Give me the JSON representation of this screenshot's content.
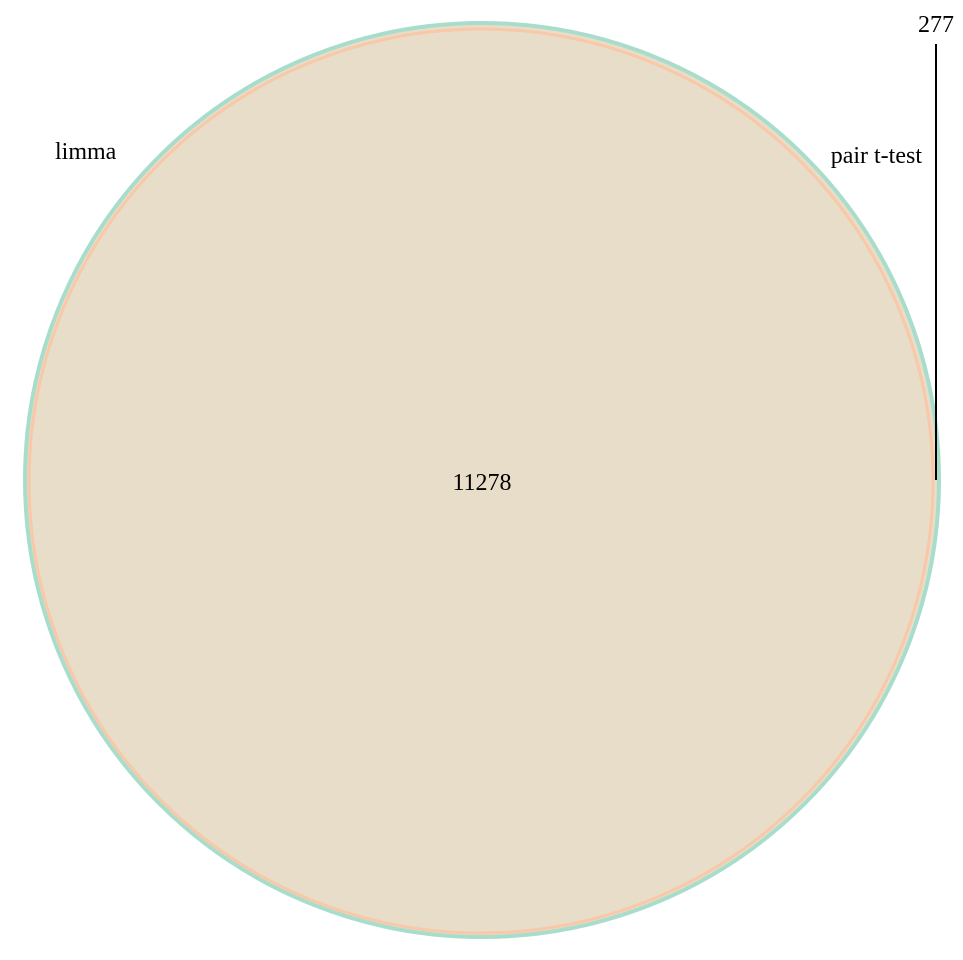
{
  "chart_data": {
    "type": "venn",
    "sets": [
      {
        "name": "limma",
        "color": "#66c2a5"
      },
      {
        "name": "pair t-test",
        "color": "#fc8d62"
      }
    ],
    "regions": [
      {
        "sets": [
          "limma",
          "pair t-test"
        ],
        "count": "11278"
      },
      {
        "sets": [
          "limma"
        ],
        "count": "277"
      }
    ]
  }
}
